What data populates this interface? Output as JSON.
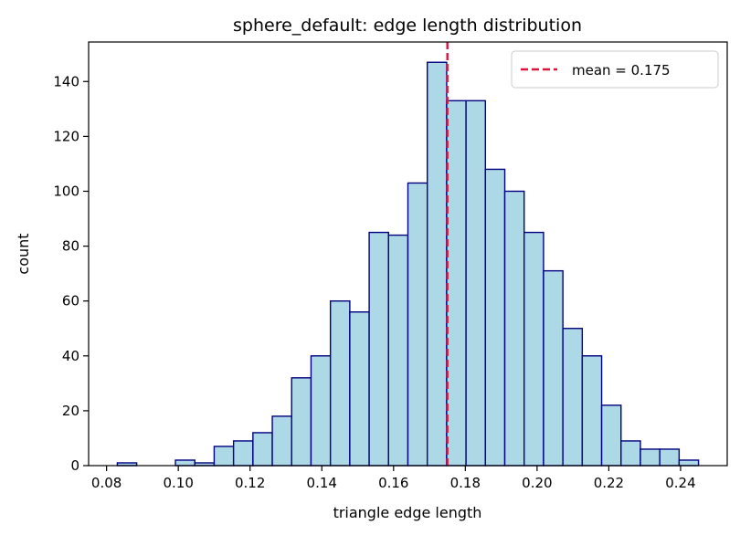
{
  "chart_data": {
    "type": "bar",
    "title": "sphere_default: edge length distribution",
    "xlabel": "triangle edge length",
    "ylabel": "count",
    "bin_edges": [
      0.083,
      0.0884,
      0.0938,
      0.0992,
      0.1046,
      0.11,
      0.1154,
      0.1208,
      0.1262,
      0.1316,
      0.137,
      0.1424,
      0.1478,
      0.1532,
      0.1586,
      0.164,
      0.1694,
      0.1748,
      0.1802,
      0.1856,
      0.191,
      0.1964,
      0.2018,
      0.2072,
      0.2126,
      0.218,
      0.2234,
      0.2288,
      0.2342,
      0.2396,
      0.245
    ],
    "values": [
      1,
      0,
      0,
      2,
      1,
      7,
      9,
      12,
      18,
      32,
      40,
      60,
      56,
      85,
      84,
      103,
      147,
      133,
      133,
      108,
      100,
      85,
      71,
      50,
      40,
      22,
      9,
      6,
      6,
      2
    ],
    "xlim": [
      0.075,
      0.253
    ],
    "ylim": [
      0,
      154.4
    ],
    "xticks": [
      "0.08",
      "0.10",
      "0.12",
      "0.14",
      "0.16",
      "0.18",
      "0.20",
      "0.22",
      "0.24"
    ],
    "xtick_values": [
      0.08,
      0.1,
      0.12,
      0.14,
      0.16,
      0.18,
      0.2,
      0.22,
      0.24
    ],
    "yticks": [
      "0",
      "20",
      "40",
      "60",
      "80",
      "100",
      "120",
      "140"
    ],
    "ytick_values": [
      0,
      20,
      40,
      60,
      80,
      100,
      120,
      140
    ],
    "mean_line": {
      "value": 0.175,
      "label": "mean = 0.175",
      "color": "#dc143c",
      "style": "dashed"
    },
    "bar_fill": "#add8e6",
    "bar_edge": "#000080",
    "grid": false,
    "legend_position": "top-right"
  }
}
